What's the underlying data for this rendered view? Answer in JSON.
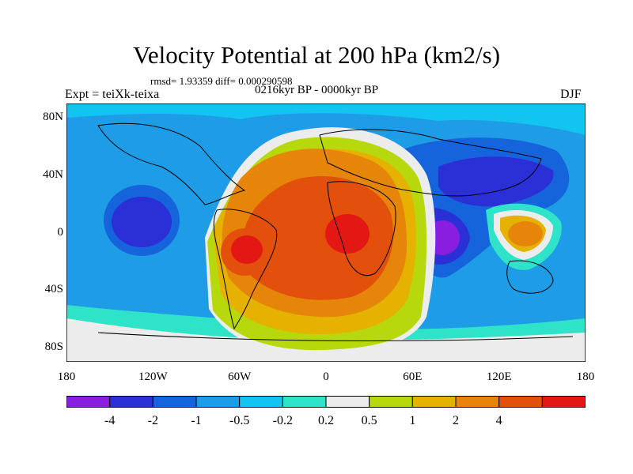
{
  "title": "Velocity Potential at 200 hPa (km2/s)",
  "stats": "rmsd= 1.93359 diff= 0.000290598",
  "experiment": "Expt = teiXk-teixa",
  "period": "0216kyr BP - 0000kyr BP",
  "season": "DJF",
  "y_ticks": [
    {
      "label": "80N",
      "lat": 80
    },
    {
      "label": "40N",
      "lat": 40
    },
    {
      "label": "0",
      "lat": 0
    },
    {
      "label": "40S",
      "lat": -40
    },
    {
      "label": "80S",
      "lat": -80
    }
  ],
  "x_ticks": [
    {
      "label": "180",
      "lon": -180
    },
    {
      "label": "120W",
      "lon": -120
    },
    {
      "label": "60W",
      "lon": -60
    },
    {
      "label": "0",
      "lon": 0
    },
    {
      "label": "60E",
      "lon": 60
    },
    {
      "label": "120E",
      "lon": 120
    },
    {
      "label": "180",
      "lon": 180
    }
  ],
  "colorbar": {
    "colors": [
      "#8a1ee0",
      "#2b2fd6",
      "#1664dc",
      "#1e9ce6",
      "#12c4f0",
      "#2fe3c8",
      "#ececec",
      "#b8d80e",
      "#e5b202",
      "#e5860a",
      "#e2500c",
      "#e31814"
    ],
    "labels": [
      "-4",
      "-2",
      "-1",
      "-0.5",
      "-0.2",
      "0.2",
      "0.5",
      "1",
      "2",
      "4"
    ]
  }
}
